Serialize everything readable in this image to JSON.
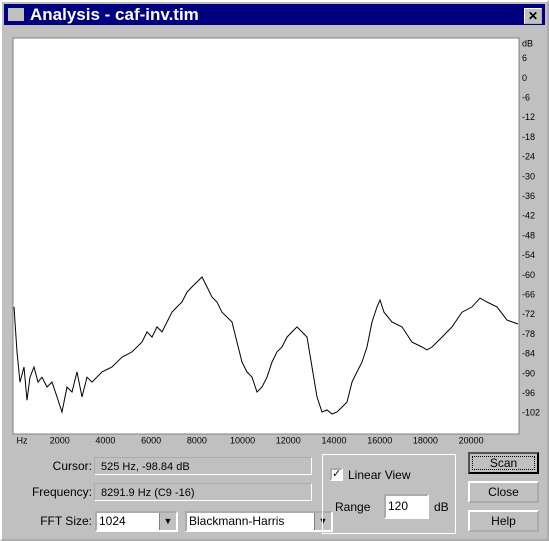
{
  "window": {
    "title": "Analysis - caf-inv.tim"
  },
  "chart_data": {
    "type": "line",
    "x_label": "Hz",
    "y_label": "dB",
    "color": "#000000",
    "x": [
      0,
      131,
      263,
      438,
      569,
      700,
      875,
      1050,
      1225,
      1444,
      1663,
      1881,
      2100,
      2319,
      2538,
      2756,
      2975,
      3194,
      3413,
      3850,
      4288,
      4725,
      5163,
      5600,
      5819,
      6038,
      6256,
      6475,
      6694,
      6913,
      7131,
      7350,
      7569,
      7788,
      8006,
      8225,
      8444,
      8663,
      8881,
      9100,
      9319,
      9538,
      9756,
      9975,
      10194,
      10413,
      10631,
      10850,
      11069,
      11288,
      11506,
      11725,
      11944,
      12163,
      12381,
      12600,
      12819,
      13038,
      13256,
      13475,
      13694,
      13913,
      14131,
      14350,
      14569,
      14788,
      15006,
      15225,
      15444,
      15663,
      15881,
      16013,
      16188,
      16538,
      16975,
      17413,
      17850,
      18069,
      18288,
      18725,
      19163,
      19600,
      20038,
      20388,
      20694,
      21131,
      21569,
      22050
    ],
    "values": [
      -69.6,
      -83.3,
      -92.5,
      -87.9,
      -98,
      -91,
      -87.9,
      -92.5,
      -91,
      -94,
      -92.5,
      -97,
      -101.6,
      -94,
      -95.5,
      -89.4,
      -97,
      -91,
      -92.5,
      -89.4,
      -87.9,
      -84.9,
      -83.3,
      -80.3,
      -77.2,
      -78.8,
      -75.7,
      -77.2,
      -74.2,
      -71.2,
      -69.6,
      -68.1,
      -65.1,
      -63.5,
      -62,
      -60.5,
      -63.5,
      -66.6,
      -68.1,
      -71.2,
      -72.7,
      -74.2,
      -80.3,
      -86.4,
      -89.4,
      -91,
      -95.5,
      -94,
      -91,
      -86.4,
      -83.3,
      -81.8,
      -78.8,
      -77.2,
      -75.7,
      -77.2,
      -78.8,
      -87.9,
      -97,
      -101.6,
      -101,
      -102.2,
      -101.6,
      -100.1,
      -98.6,
      -92.5,
      -89.4,
      -86.4,
      -81.8,
      -74.2,
      -69.6,
      -67.5,
      -71.2,
      -74.2,
      -75.7,
      -80.3,
      -81.8,
      -82.7,
      -81.8,
      -78.8,
      -75.7,
      -71.2,
      -69.6,
      -66.9,
      -68.1,
      -69.6,
      -73.6,
      -74.8
    ],
    "xlim": [
      0,
      22050
    ],
    "ylim": [
      -108,
      12
    ],
    "xticks": [
      2000,
      4000,
      6000,
      8000,
      10000,
      12000,
      14000,
      16000,
      18000,
      20000
    ],
    "yticks": [
      6,
      0,
      -6,
      -12,
      -18,
      -24,
      -30,
      -36,
      -42,
      -48,
      -54,
      -60,
      -66,
      -72,
      -78,
      -84,
      -90,
      -96,
      -102
    ]
  },
  "controls": {
    "cursor_label": "Cursor:",
    "cursor_value": "525 Hz, -98.84 dB",
    "frequency_label": "Frequency:",
    "frequency_value": "8291.9 Hz (C9 -16)",
    "fft_size_label": "FFT Size:",
    "fft_size": "1024",
    "window_function": "Blackmann-Harris",
    "linear_view_label": "Linear View",
    "linear_view": true,
    "range_label": "Range",
    "range_value": "120",
    "range_unit": "dB",
    "buttons": [
      "Scan",
      "Close",
      "Help"
    ]
  }
}
